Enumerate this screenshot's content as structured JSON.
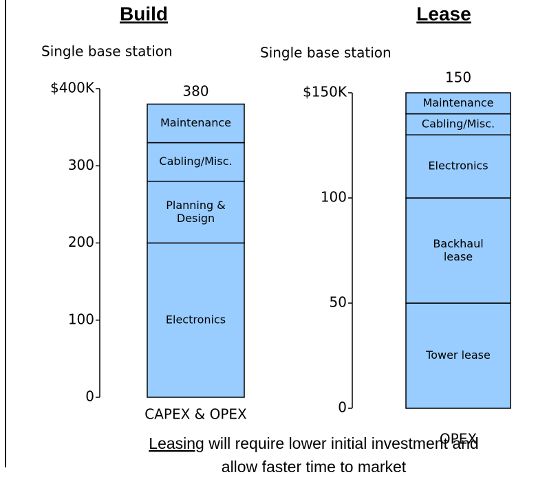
{
  "chart_data": [
    {
      "type": "stacked_bar",
      "title": "Build",
      "subtitle": "Single base station",
      "categories": [
        "CAPEX & OPEX"
      ],
      "total": 380,
      "series": [
        {
          "name": "Electronics",
          "color": "#99ccff",
          "values": [
            200
          ]
        },
        {
          "name": "Planning & Design",
          "color": "#99ccff",
          "values": [
            80
          ]
        },
        {
          "name": "Cabling/Misc.",
          "color": "#99ccff",
          "values": [
            50
          ]
        },
        {
          "name": "Maintenance",
          "color": "#99ccff",
          "values": [
            50
          ]
        }
      ],
      "ylim": [
        0,
        400
      ],
      "yticks": [
        0,
        100,
        200,
        300,
        {
          "value": 400,
          "label": "$400K"
        }
      ]
    },
    {
      "type": "stacked_bar",
      "title": "Lease",
      "subtitle": "Single base station",
      "categories": [
        "OPEX"
      ],
      "total": 150,
      "series": [
        {
          "name": "Tower lease",
          "color": "#99ccff",
          "values": [
            50
          ]
        },
        {
          "name": "Backhaul lease",
          "color": "#99ccff",
          "values": [
            50
          ]
        },
        {
          "name": "Electronics",
          "color": "#99ccff",
          "values": [
            30
          ]
        },
        {
          "name": "Cabling/Misc.",
          "color": "#99ccff",
          "values": [
            10
          ]
        },
        {
          "name": "Maintenance",
          "color": "#99ccff",
          "values": [
            10
          ]
        }
      ],
      "ylim": [
        0,
        150
      ],
      "yticks": [
        0,
        50,
        100,
        {
          "value": 150,
          "label": "$150K"
        }
      ]
    }
  ],
  "footer": {
    "underlined": "Leasing",
    "line1": "will require lower initial investment and",
    "line2": "allow faster time to market"
  }
}
